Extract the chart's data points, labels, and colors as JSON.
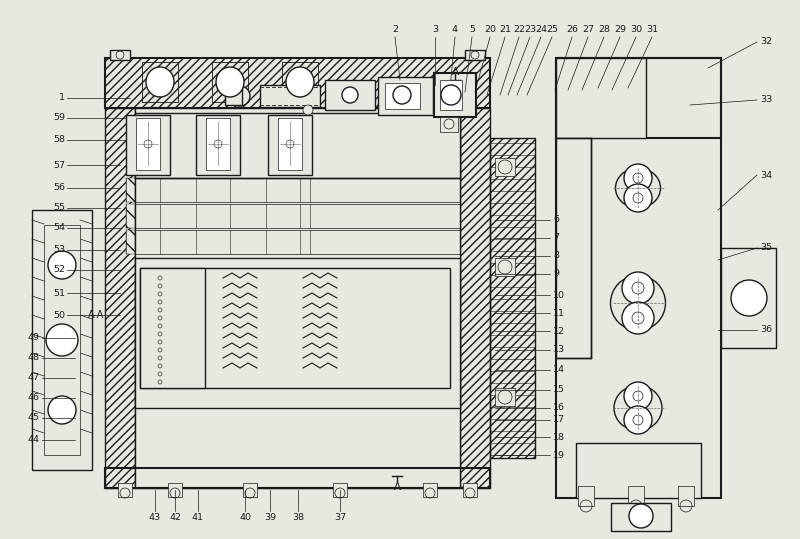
{
  "bg_color": "#e8e8e0",
  "line_color": "#1a1a1a",
  "figsize": [
    8.0,
    5.39
  ],
  "dpi": 100,
  "left_labels": [
    "1",
    "59",
    "58",
    "57",
    "56",
    "55",
    "54",
    "53",
    "52",
    "51",
    "50",
    "49",
    "48",
    "47",
    "46",
    "45",
    "44"
  ],
  "right_labels": [
    "6",
    "7",
    "8",
    "9",
    "10",
    "11",
    "12",
    "13",
    "14",
    "15",
    "16",
    "17",
    "18",
    "19"
  ],
  "top_labels": [
    "2",
    "3",
    "4",
    "5",
    "20",
    "21",
    "22",
    "23",
    "24",
    "25",
    "26",
    "27",
    "28",
    "29",
    "30",
    "31"
  ],
  "far_right_labels": [
    "32",
    "33",
    "34",
    "35",
    "36"
  ],
  "bottom_labels": [
    "43",
    "42",
    "41",
    "40",
    "39",
    "38",
    "37"
  ]
}
